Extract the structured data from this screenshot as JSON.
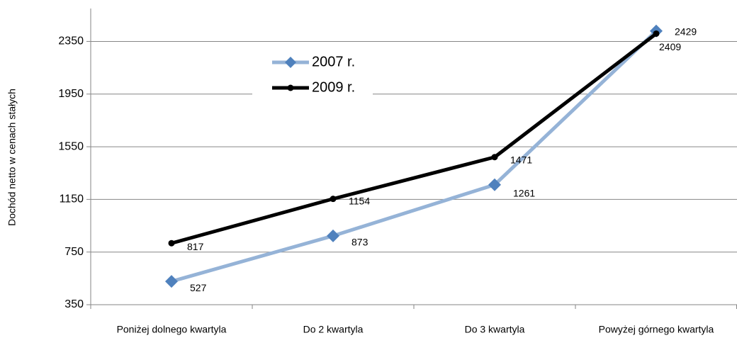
{
  "chart_data": {
    "type": "line",
    "y_label": "Dochód netto w cenach stałych",
    "categories": [
      "Poniżej dolnego kwartyla",
      "Do 2 kwartyla",
      "Do 3 kwartyla",
      "Powyżej górnego kwartyla"
    ],
    "series": [
      {
        "name": "2007 r.",
        "color": "#95b3d7",
        "marker_color": "#4f81bd",
        "marker": "diamond",
        "values": [
          527,
          873,
          1261,
          2429
        ]
      },
      {
        "name": "2009 r.",
        "color": "#000000",
        "marker_color": "#000000",
        "marker": "circle",
        "values": [
          817,
          1154,
          1471,
          2409
        ]
      }
    ],
    "ylim": [
      350,
      2600
    ],
    "yticks": [
      350,
      750,
      1150,
      1550,
      1950,
      2350
    ],
    "grid": true,
    "legend": "top-left"
  }
}
